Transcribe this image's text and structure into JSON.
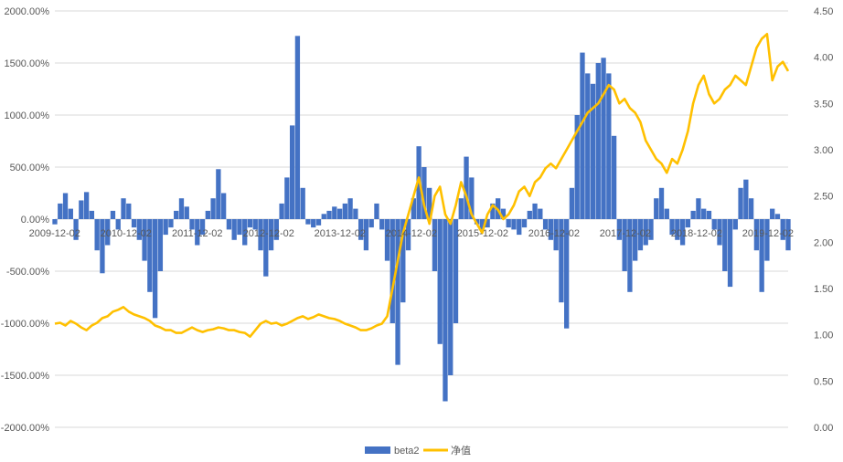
{
  "chart_data": {
    "type": "bar+line",
    "title": "",
    "x_tick_labels": [
      "2009-12-02",
      "2010-12-02",
      "2011-12-02",
      "2012-12-02",
      "2013-12-02",
      "2014-12-02",
      "2015-12-02",
      "2016-12-02",
      "2017-12-02",
      "2018-12-02",
      "2019-12-02"
    ],
    "left_axis": {
      "ticks": [
        "-2000.00%",
        "-1500.00%",
        "-1000.00%",
        "-500.00%",
        "0.00%",
        "500.00%",
        "1000.00%",
        "1500.00%",
        "2000.00%"
      ],
      "min": -2000,
      "max": 2000
    },
    "right_axis": {
      "ticks": [
        "0.00",
        "0.50",
        "1.00",
        "1.50",
        "2.00",
        "2.50",
        "3.00",
        "3.50",
        "4.00",
        "4.50"
      ],
      "min": 0,
      "max": 4.5
    },
    "grid": true,
    "legend_position": "bottom",
    "colors": {
      "bars": "#4472C4",
      "line": "#FFC000",
      "grid": "#d9d9d9"
    },
    "series": [
      {
        "name": "beta2",
        "type": "bar",
        "axis": "left",
        "unit": "%",
        "x_start": 2009.92,
        "x_end": 2020.2,
        "values": [
          -50,
          150,
          250,
          100,
          -200,
          180,
          260,
          80,
          -300,
          -520,
          -250,
          80,
          -100,
          200,
          150,
          -80,
          -200,
          -400,
          -700,
          -950,
          -500,
          -150,
          -80,
          80,
          200,
          120,
          -100,
          -250,
          -150,
          80,
          200,
          480,
          250,
          -100,
          -200,
          -150,
          -250,
          -80,
          -100,
          -300,
          -550,
          -300,
          -200,
          150,
          400,
          900,
          1760,
          300,
          -50,
          -80,
          -60,
          50,
          80,
          120,
          100,
          150,
          200,
          100,
          -200,
          -300,
          -80,
          150,
          -100,
          -400,
          -1000,
          -1400,
          -800,
          -300,
          200,
          700,
          500,
          300,
          -500,
          -1200,
          -1750,
          -1500,
          -1000,
          200,
          600,
          400,
          -50,
          -100,
          -80,
          150,
          200,
          100,
          -80,
          -100,
          -150,
          -80,
          80,
          150,
          100,
          -100,
          -200,
          -300,
          -800,
          -1050,
          300,
          1000,
          1600,
          1400,
          1300,
          1500,
          1550,
          1400,
          800,
          -200,
          -500,
          -700,
          -400,
          -300,
          -250,
          -200,
          200,
          300,
          100,
          -150,
          -200,
          -250,
          -80,
          80,
          200,
          100,
          80,
          -100,
          -250,
          -500,
          -650,
          -100,
          300,
          380,
          200,
          -300,
          -700,
          -400,
          100,
          50,
          -200,
          -300
        ]
      },
      {
        "name": "净值",
        "type": "line",
        "axis": "right",
        "x_start": 2009.92,
        "x_end": 2020.2,
        "values": [
          1.12,
          1.13,
          1.1,
          1.15,
          1.12,
          1.08,
          1.05,
          1.1,
          1.13,
          1.18,
          1.2,
          1.25,
          1.27,
          1.3,
          1.25,
          1.22,
          1.2,
          1.18,
          1.15,
          1.1,
          1.08,
          1.05,
          1.05,
          1.02,
          1.02,
          1.05,
          1.08,
          1.05,
          1.03,
          1.05,
          1.06,
          1.08,
          1.07,
          1.05,
          1.05,
          1.03,
          1.02,
          0.98,
          1.05,
          1.12,
          1.15,
          1.12,
          1.13,
          1.1,
          1.12,
          1.15,
          1.18,
          1.2,
          1.17,
          1.19,
          1.22,
          1.2,
          1.18,
          1.17,
          1.15,
          1.12,
          1.1,
          1.08,
          1.05,
          1.05,
          1.07,
          1.1,
          1.12,
          1.2,
          1.5,
          1.8,
          2.1,
          2.3,
          2.5,
          2.7,
          2.4,
          2.2,
          2.5,
          2.6,
          2.3,
          2.2,
          2.4,
          2.65,
          2.5,
          2.3,
          2.2,
          2.1,
          2.3,
          2.4,
          2.35,
          2.25,
          2.3,
          2.4,
          2.55,
          2.6,
          2.5,
          2.65,
          2.7,
          2.8,
          2.85,
          2.8,
          2.9,
          3.0,
          3.1,
          3.2,
          3.3,
          3.4,
          3.45,
          3.5,
          3.6,
          3.7,
          3.65,
          3.5,
          3.55,
          3.45,
          3.4,
          3.3,
          3.1,
          3.0,
          2.9,
          2.85,
          2.75,
          2.9,
          2.85,
          3.0,
          3.2,
          3.5,
          3.7,
          3.8,
          3.6,
          3.5,
          3.55,
          3.65,
          3.7,
          3.8,
          3.75,
          3.7,
          3.9,
          4.1,
          4.2,
          4.25,
          3.75,
          3.9,
          3.95,
          3.85
        ]
      }
    ]
  }
}
